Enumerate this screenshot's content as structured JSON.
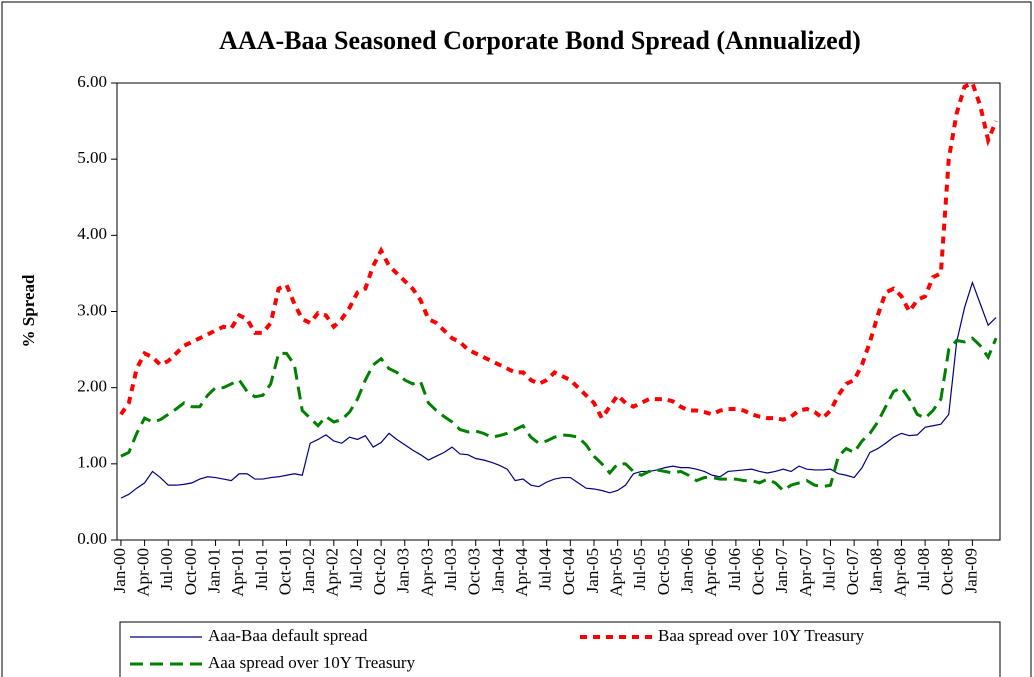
{
  "chart_data": {
    "type": "line",
    "title": "AAA-Baa Seasoned Corporate Bond Spread (Annualized)",
    "y_label": "% Spread",
    "categories": [
      "Jan-00",
      null,
      null,
      "Apr-00",
      null,
      null,
      "Jul-00",
      null,
      null,
      "Oct-00",
      null,
      null,
      "Jan-01",
      null,
      null,
      "Apr-01",
      null,
      null,
      "Jul-01",
      null,
      null,
      "Oct-01",
      null,
      null,
      "Jan-02",
      null,
      null,
      "Apr-02",
      null,
      null,
      "Jul-02",
      null,
      null,
      "Oct-02",
      null,
      null,
      "Jan-03",
      null,
      null,
      "Apr-03",
      null,
      null,
      "Jul-03",
      null,
      null,
      "Oct-03",
      null,
      null,
      "Jan-04",
      null,
      null,
      "Apr-04",
      null,
      null,
      "Jul-04",
      null,
      null,
      "Oct-04",
      null,
      null,
      "Jan-05",
      null,
      null,
      "Apr-05",
      null,
      null,
      "Jul-05",
      null,
      null,
      "Oct-05",
      null,
      null,
      "Jan-06",
      null,
      null,
      "Apr-06",
      null,
      null,
      "Jul-06",
      null,
      null,
      "Oct-06",
      null,
      null,
      "Jan-07",
      null,
      null,
      "Apr-07",
      null,
      null,
      "Jul-07",
      null,
      null,
      "Oct-07",
      null,
      null,
      "Jan-08",
      null,
      null,
      "Apr-08",
      null,
      null,
      "Jul-08",
      null,
      null,
      "Oct-08",
      null,
      null,
      "Jan-09",
      null,
      null,
      null
    ],
    "series": [
      {
        "name": "Aaa-Baa default spread",
        "color": "#000080",
        "style": "solid",
        "values": [
          0.55,
          0.6,
          0.68,
          0.75,
          0.9,
          0.82,
          0.72,
          0.72,
          0.73,
          0.75,
          0.8,
          0.83,
          0.82,
          0.8,
          0.78,
          0.87,
          0.87,
          0.8,
          0.8,
          0.82,
          0.83,
          0.85,
          0.87,
          0.85,
          1.27,
          1.32,
          1.38,
          1.3,
          1.27,
          1.35,
          1.32,
          1.37,
          1.22,
          1.28,
          1.4,
          1.32,
          1.25,
          1.18,
          1.12,
          1.05,
          1.1,
          1.15,
          1.22,
          1.13,
          1.12,
          1.07,
          1.05,
          1.02,
          0.98,
          0.93,
          0.78,
          0.8,
          0.72,
          0.7,
          0.76,
          0.8,
          0.82,
          0.82,
          0.75,
          0.68,
          0.67,
          0.65,
          0.62,
          0.65,
          0.72,
          0.87,
          0.9,
          0.9,
          0.92,
          0.95,
          0.97,
          0.95,
          0.95,
          0.93,
          0.9,
          0.85,
          0.83,
          0.9,
          0.91,
          0.92,
          0.93,
          0.9,
          0.88,
          0.9,
          0.93,
          0.9,
          0.97,
          0.93,
          0.92,
          0.92,
          0.93,
          0.87,
          0.85,
          0.82,
          0.95,
          1.15,
          1.2,
          1.27,
          1.35,
          1.4,
          1.37,
          1.38,
          1.48,
          1.5,
          1.52,
          1.65,
          2.6,
          3.05,
          3.38,
          3.1,
          2.82,
          2.92
        ]
      },
      {
        "name": "Baa spread over 10Y Treasury",
        "color": "#ff0000",
        "style": "dotted",
        "values": [
          1.65,
          1.8,
          2.25,
          2.45,
          2.4,
          2.3,
          2.35,
          2.45,
          2.55,
          2.6,
          2.65,
          2.7,
          2.75,
          2.8,
          2.78,
          2.95,
          2.9,
          2.72,
          2.72,
          2.85,
          3.3,
          3.35,
          3.1,
          2.9,
          2.85,
          2.98,
          2.95,
          2.8,
          2.9,
          3.05,
          3.25,
          3.3,
          3.6,
          3.8,
          3.6,
          3.5,
          3.4,
          3.3,
          3.15,
          2.9,
          2.85,
          2.75,
          2.65,
          2.6,
          2.5,
          2.45,
          2.4,
          2.35,
          2.3,
          2.25,
          2.2,
          2.2,
          2.1,
          2.05,
          2.1,
          2.2,
          2.15,
          2.1,
          2.0,
          1.9,
          1.8,
          1.6,
          1.75,
          1.9,
          1.8,
          1.75,
          1.8,
          1.85,
          1.85,
          1.85,
          1.82,
          1.75,
          1.7,
          1.7,
          1.68,
          1.65,
          1.7,
          1.72,
          1.72,
          1.7,
          1.65,
          1.62,
          1.6,
          1.6,
          1.58,
          1.62,
          1.7,
          1.72,
          1.68,
          1.6,
          1.7,
          1.9,
          2.05,
          2.1,
          2.3,
          2.6,
          2.95,
          3.25,
          3.3,
          3.2,
          3.0,
          3.15,
          3.2,
          3.45,
          3.5,
          5.0,
          5.6,
          5.95,
          6.0,
          5.7,
          5.25,
          5.5
        ]
      },
      {
        "name": "Aaa spread over 10Y Treasury",
        "color": "#008000",
        "style": "dashed",
        "values": [
          1.1,
          1.15,
          1.4,
          1.6,
          1.55,
          1.58,
          1.65,
          1.72,
          1.8,
          1.75,
          1.75,
          1.9,
          2.0,
          2.0,
          2.05,
          2.1,
          1.95,
          1.88,
          1.9,
          2.05,
          2.45,
          2.45,
          2.3,
          1.7,
          1.6,
          1.5,
          1.62,
          1.55,
          1.58,
          1.68,
          1.85,
          2.1,
          2.3,
          2.38,
          2.25,
          2.2,
          2.1,
          2.05,
          2.08,
          1.8,
          1.7,
          1.62,
          1.55,
          1.45,
          1.42,
          1.43,
          1.4,
          1.35,
          1.37,
          1.4,
          1.45,
          1.5,
          1.35,
          1.27,
          1.3,
          1.35,
          1.38,
          1.37,
          1.35,
          1.25,
          1.1,
          1.0,
          0.88,
          1.0,
          1.0,
          0.9,
          0.85,
          0.9,
          0.92,
          0.9,
          0.88,
          0.9,
          0.85,
          0.78,
          0.82,
          0.82,
          0.8,
          0.8,
          0.8,
          0.78,
          0.78,
          0.75,
          0.8,
          0.75,
          0.65,
          0.72,
          0.75,
          0.78,
          0.72,
          0.7,
          0.72,
          1.1,
          1.2,
          1.15,
          1.3,
          1.4,
          1.55,
          1.75,
          1.95,
          2.0,
          1.85,
          1.65,
          1.6,
          1.7,
          1.85,
          2.5,
          2.62,
          2.6,
          2.65,
          2.55,
          2.4,
          2.65
        ]
      }
    ],
    "ylim": [
      0,
      6
    ],
    "yticks": [
      {
        "value": 0,
        "label": "0.00"
      },
      {
        "value": 1,
        "label": "1.00"
      },
      {
        "value": 2,
        "label": "2.00"
      },
      {
        "value": 3,
        "label": "3.00"
      },
      {
        "value": 4,
        "label": "4.00"
      },
      {
        "value": 5,
        "label": "5.00"
      },
      {
        "value": 6,
        "label": "6.00"
      }
    ],
    "grid": false,
    "legend": "bottom"
  }
}
